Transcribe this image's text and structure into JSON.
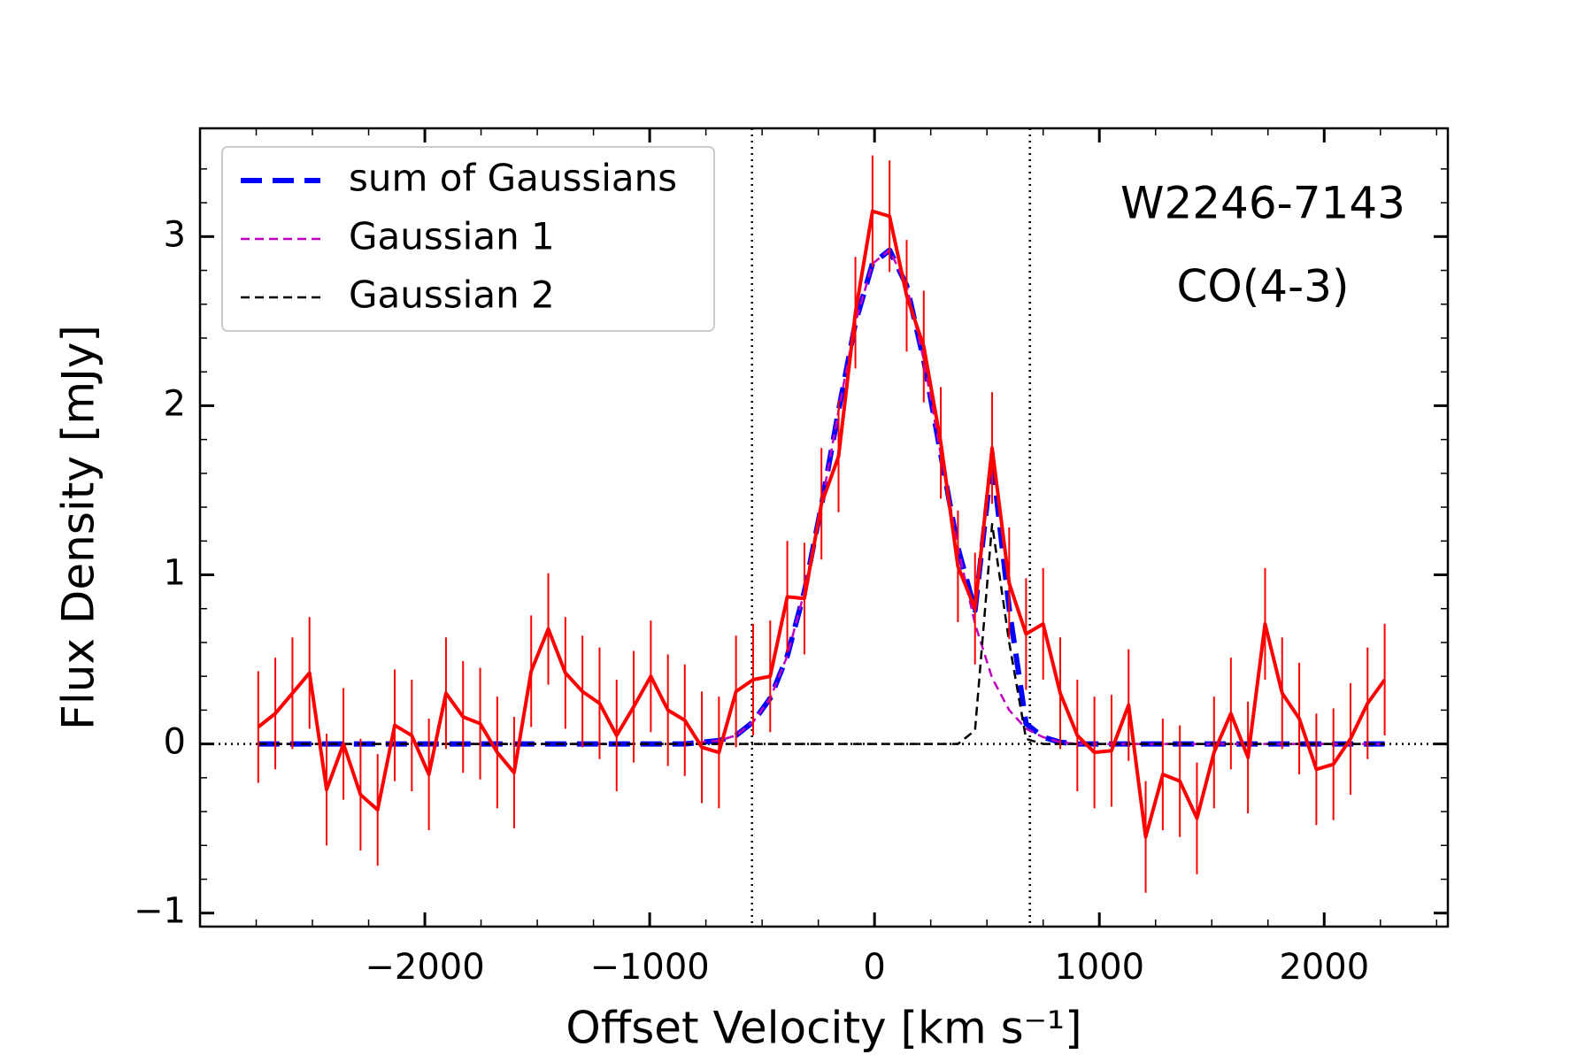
{
  "chart_data": {
    "type": "line",
    "xlabel": "Offset Velocity [km s⁻¹]",
    "ylabel": "Flux Density [mJy]",
    "annotations": [
      "W2246-7143",
      "CO(4-3)"
    ],
    "legend": "upper left",
    "x": [
      -2741,
      -2665,
      -2589,
      -2513,
      -2437,
      -2362,
      -2286,
      -2210,
      -2134,
      -2058,
      -1982,
      -1906,
      -1830,
      -1754,
      -1678,
      -1603,
      -1527,
      -1451,
      -1375,
      -1299,
      -1223,
      -1147,
      -1071,
      -995,
      -919,
      -844,
      -768,
      -692,
      -616,
      -540,
      -464,
      -388,
      -312,
      -236,
      -160,
      -85,
      -9,
      67,
      143,
      219,
      295,
      371,
      447,
      523,
      599,
      674,
      750,
      826,
      902,
      978,
      1054,
      1130,
      1206,
      1282,
      1358,
      1434,
      1510,
      1585,
      1661,
      1737,
      1813,
      1889,
      1965,
      2041,
      2117,
      2193,
      2269
    ],
    "observed": {
      "color": "#ff0000",
      "values": [
        0.1,
        0.18,
        0.3,
        0.42,
        -0.27,
        0.0,
        -0.3,
        -0.39,
        0.11,
        0.05,
        -0.18,
        0.3,
        0.16,
        0.12,
        -0.05,
        -0.17,
        0.43,
        0.68,
        0.42,
        0.31,
        0.24,
        0.05,
        0.22,
        0.4,
        0.2,
        0.14,
        -0.02,
        -0.05,
        0.31,
        0.38,
        0.4,
        0.87,
        0.86,
        1.42,
        1.7,
        2.55,
        3.15,
        3.12,
        2.65,
        2.35,
        1.78,
        1.05,
        0.8,
        1.75,
        0.95,
        0.65,
        0.71,
        0.3,
        0.05,
        -0.05,
        -0.04,
        0.23,
        -0.55,
        -0.18,
        -0.22,
        -0.44,
        -0.05,
        0.18,
        -0.08,
        0.71,
        0.3,
        0.15,
        -0.15,
        -0.12,
        0.03,
        0.24,
        0.38
      ],
      "errors": [
        0.33,
        0.33,
        0.33,
        0.33,
        0.33,
        0.33,
        0.33,
        0.33,
        0.33,
        0.33,
        0.33,
        0.33,
        0.33,
        0.33,
        0.33,
        0.33,
        0.33,
        0.33,
        0.33,
        0.33,
        0.33,
        0.33,
        0.33,
        0.33,
        0.33,
        0.33,
        0.33,
        0.33,
        0.33,
        0.33,
        0.33,
        0.33,
        0.33,
        0.33,
        0.33,
        0.33,
        0.33,
        0.33,
        0.33,
        0.33,
        0.33,
        0.33,
        0.33,
        0.33,
        0.33,
        0.33,
        0.33,
        0.33,
        0.33,
        0.33,
        0.33,
        0.33,
        0.33,
        0.33,
        0.33,
        0.33,
        0.33,
        0.33,
        0.33,
        0.33,
        0.33,
        0.33,
        0.33,
        0.33,
        0.33,
        0.33,
        0.33
      ]
    },
    "series": [
      {
        "name": "sum of Gaussians",
        "color": "#0000ff",
        "values": [
          0,
          0,
          0,
          0,
          0,
          0,
          0,
          0,
          0,
          0,
          0,
          0,
          0,
          0,
          0,
          0,
          0,
          0,
          0,
          0,
          0,
          0,
          0,
          0,
          0,
          0,
          0.01,
          0.02,
          0.05,
          0.13,
          0.27,
          0.52,
          0.9,
          1.41,
          1.97,
          2.49,
          2.84,
          2.92,
          2.71,
          2.27,
          1.71,
          1.16,
          0.79,
          1.69,
          0.8,
          0.12,
          0.04,
          0.01,
          0,
          0,
          0,
          0,
          0,
          0,
          0,
          0,
          0,
          0,
          0,
          0,
          0,
          0,
          0,
          0,
          0,
          0,
          0
        ]
      },
      {
        "name": "Gaussian 1",
        "color": "#bf00bf",
        "values": [
          0,
          0,
          0,
          0,
          0,
          0,
          0,
          0,
          0,
          0,
          0,
          0,
          0,
          0,
          0,
          0,
          0,
          0,
          0,
          0,
          0,
          0,
          0,
          0,
          0,
          0,
          0.01,
          0.02,
          0.05,
          0.13,
          0.27,
          0.52,
          0.9,
          1.41,
          1.97,
          2.49,
          2.84,
          2.92,
          2.71,
          2.27,
          1.71,
          1.16,
          0.71,
          0.39,
          0.2,
          0.09,
          0.04,
          0.01,
          0,
          0,
          0,
          0,
          0,
          0,
          0,
          0,
          0,
          0,
          0,
          0,
          0,
          0,
          0,
          0,
          0,
          0,
          0
        ]
      },
      {
        "name": "Gaussian 2",
        "color": "#000000",
        "values": [
          0,
          0,
          0,
          0,
          0,
          0,
          0,
          0,
          0,
          0,
          0,
          0,
          0,
          0,
          0,
          0,
          0,
          0,
          0,
          0,
          0,
          0,
          0,
          0,
          0,
          0,
          0,
          0,
          0,
          0,
          0,
          0,
          0,
          0,
          0,
          0,
          0,
          0,
          0,
          0,
          0,
          0,
          0.08,
          1.3,
          0.6,
          0.03,
          0,
          0,
          0,
          0,
          0,
          0,
          0,
          0,
          0,
          0,
          0,
          0,
          0,
          0,
          0,
          0,
          0,
          0,
          0,
          0,
          0
        ]
      }
    ],
    "hlines": [
      0
    ],
    "vlines": [
      -545,
      691
    ],
    "xlim": [
      -3000,
      2550
    ],
    "ylim": [
      -1.08,
      3.64
    ],
    "xticks": [
      {
        "value": -2000,
        "label": "−2000"
      },
      {
        "value": -1000,
        "label": "−1000"
      },
      0,
      1000,
      2000
    ],
    "yticks": [
      {
        "value": -1,
        "label": "−1"
      },
      0,
      1,
      2,
      3
    ],
    "xticks_minor": [
      -2750,
      -2500,
      -2250,
      -1750,
      -1500,
      -1250,
      -750,
      -500,
      -250,
      250,
      500,
      750,
      1250,
      1500,
      1750,
      2250,
      2500
    ],
    "yticks_minor": [
      -0.8,
      -0.6,
      -0.4,
      -0.2,
      0.2,
      0.4,
      0.6,
      0.8,
      1.2,
      1.4,
      1.6,
      1.8,
      2.2,
      2.4,
      2.6,
      2.8,
      3.2,
      3.4
    ]
  }
}
